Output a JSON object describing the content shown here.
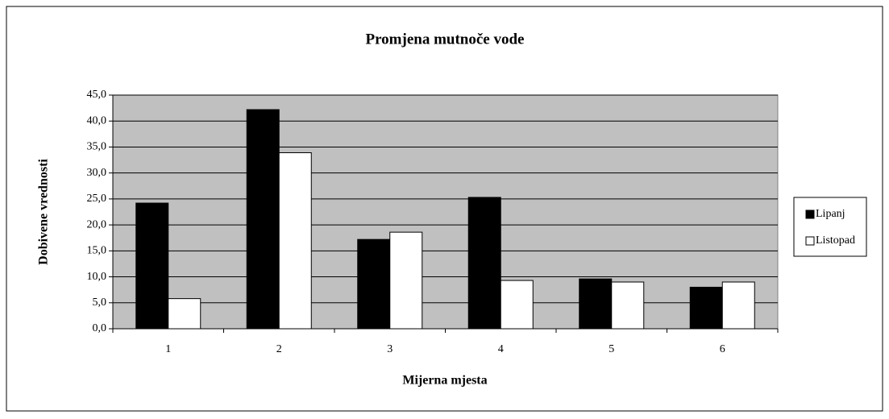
{
  "chart_data": {
    "type": "bar",
    "title": "Promjena mutnoče vode",
    "x_label": "Mijerna mjesta",
    "y_label": "Dobivene vrednosti",
    "categories": [
      "1",
      "2",
      "3",
      "4",
      "5",
      "6"
    ],
    "series": [
      {
        "name": "Lipanj",
        "color": "#000000",
        "values": [
          24.2,
          42.2,
          17.2,
          25.3,
          9.6,
          8.0
        ]
      },
      {
        "name": "Listopad",
        "color": "#ffffff",
        "values": [
          5.8,
          33.9,
          18.6,
          9.3,
          9.0,
          9.0
        ]
      }
    ],
    "ylim": [
      0,
      45
    ],
    "yticks": [
      {
        "value": 0,
        "label": "0,0"
      },
      {
        "value": 5,
        "label": "5,0"
      },
      {
        "value": 10,
        "label": "10,0"
      },
      {
        "value": 15,
        "label": "15,0"
      },
      {
        "value": 20,
        "label": "20,0"
      },
      {
        "value": 25,
        "label": "25,0"
      },
      {
        "value": 30,
        "label": "30,0"
      },
      {
        "value": 35,
        "label": "35,0"
      },
      {
        "value": 40,
        "label": "40,0"
      },
      {
        "value": 45,
        "label": "45,0"
      }
    ],
    "grid": true,
    "legend": "right",
    "plot_background": "#c0c0c0"
  }
}
